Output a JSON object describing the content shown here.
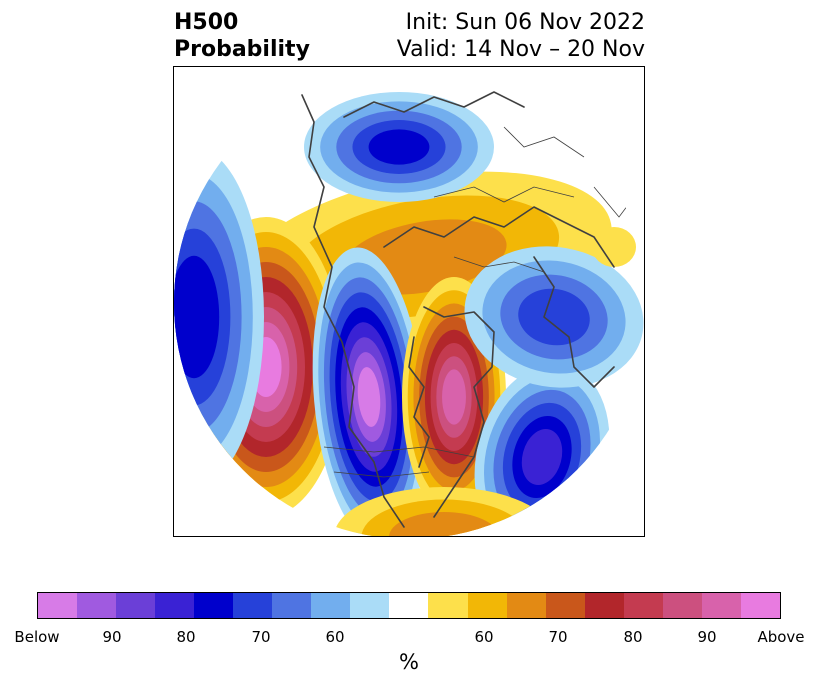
{
  "header": {
    "title_line1": "H500",
    "title_line2": "Probability",
    "init_text": "Init: Sun 06 Nov 2022",
    "valid_text": "Valid: 14 Nov – 20 Nov"
  },
  "map": {
    "projection": "north-polar-stereographic",
    "contour_colors_below": [
      "#d77be7",
      "#a05ae0",
      "#6b3fd7",
      "#3a22d4",
      "#0000cc",
      "#2641d9",
      "#4f74e2",
      "#72aeee",
      "#aadcf7"
    ],
    "contour_colors_above": [
      "#fde04b",
      "#f2b706",
      "#e38a14",
      "#c9571b",
      "#b2262b",
      "#c43b50",
      "#cc507f",
      "#d862ab",
      "#e87be0"
    ]
  },
  "colorbar": {
    "colors": [
      "#d77be7",
      "#a05ae0",
      "#6b3fd7",
      "#3a22d4",
      "#0000cc",
      "#2641d9",
      "#4f74e2",
      "#72aeee",
      "#aadcf7",
      "#ffffff",
      "#fde04b",
      "#f2b706",
      "#e38a14",
      "#c9571b",
      "#b2262b",
      "#c43b50",
      "#cc507f",
      "#d862ab",
      "#e87be0"
    ],
    "tick_labels": [
      "Below",
      "90",
      "80",
      "70",
      "60",
      "60",
      "70",
      "80",
      "90",
      "Above"
    ],
    "unit": "%"
  }
}
